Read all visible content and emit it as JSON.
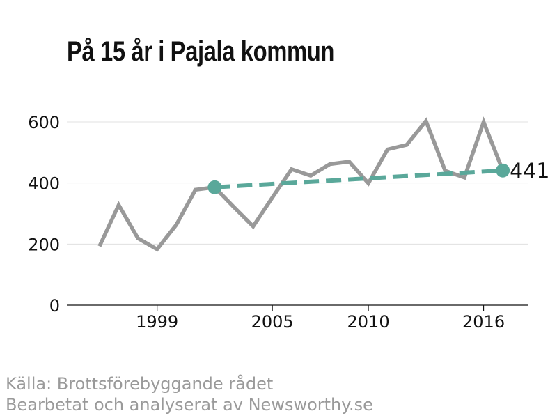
{
  "title": "På 15 år i Pajala kommun",
  "source": {
    "line1": "Källa: Brottsförebyggande rådet",
    "line2": "Bearbetat och analyserat av Newsworthy.se"
  },
  "colors": {
    "series": "#999999",
    "trend": "#5aa89a",
    "grid": "#e0e0e0",
    "axis": "#111111"
  },
  "chart_data": {
    "type": "line",
    "title": "På 15 år i Pajala kommun",
    "xlabel": "",
    "ylabel": "",
    "xlim": [
      1994.3,
      2018.3
    ],
    "ylim": [
      0,
      600
    ],
    "x_ticks": [
      1999,
      2005,
      2010,
      2016
    ],
    "y_ticks": [
      0,
      200,
      400,
      600
    ],
    "grid": true,
    "series": [
      {
        "x": [
          1996,
          1997,
          1998,
          1999,
          2000,
          2001,
          2002,
          2003,
          2004,
          2005,
          2006,
          2007,
          2008,
          2009,
          2010,
          2011,
          2012,
          2013,
          2014,
          2015,
          2016,
          2017
        ],
        "values": [
          193,
          328,
          219,
          183,
          263,
          378,
          386,
          321,
          258,
          352,
          445,
          424,
          462,
          470,
          399,
          510,
          525,
          603,
          440,
          418,
          600,
          441
        ]
      }
    ],
    "trend": {
      "x": [
        2002,
        2017
      ],
      "values": [
        386,
        441
      ],
      "end_label": "441"
    }
  }
}
